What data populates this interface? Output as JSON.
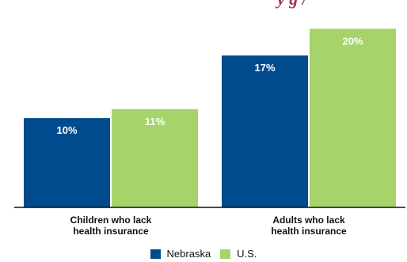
{
  "colors": {
    "nebraska": "#004b8d",
    "us": "#a6d46b",
    "axis": "#111111",
    "fragment": "#a0334e"
  },
  "top_fragment": "y g /",
  "chart_data": {
    "type": "bar",
    "categories": [
      [
        "Children who lack",
        "health insurance"
      ],
      [
        "Adults who lack",
        "health insurance"
      ]
    ],
    "series": [
      {
        "name": "Nebraska",
        "values": [
          10,
          17
        ],
        "labels": [
          "10%",
          "17%"
        ],
        "color": "#004b8d"
      },
      {
        "name": "U.S.",
        "values": [
          11,
          20
        ],
        "labels": [
          "11%",
          "20%"
        ],
        "color": "#a6d46b"
      }
    ],
    "ylim": [
      0,
      21
    ],
    "grid": false,
    "legend_position": "bottom-center"
  }
}
